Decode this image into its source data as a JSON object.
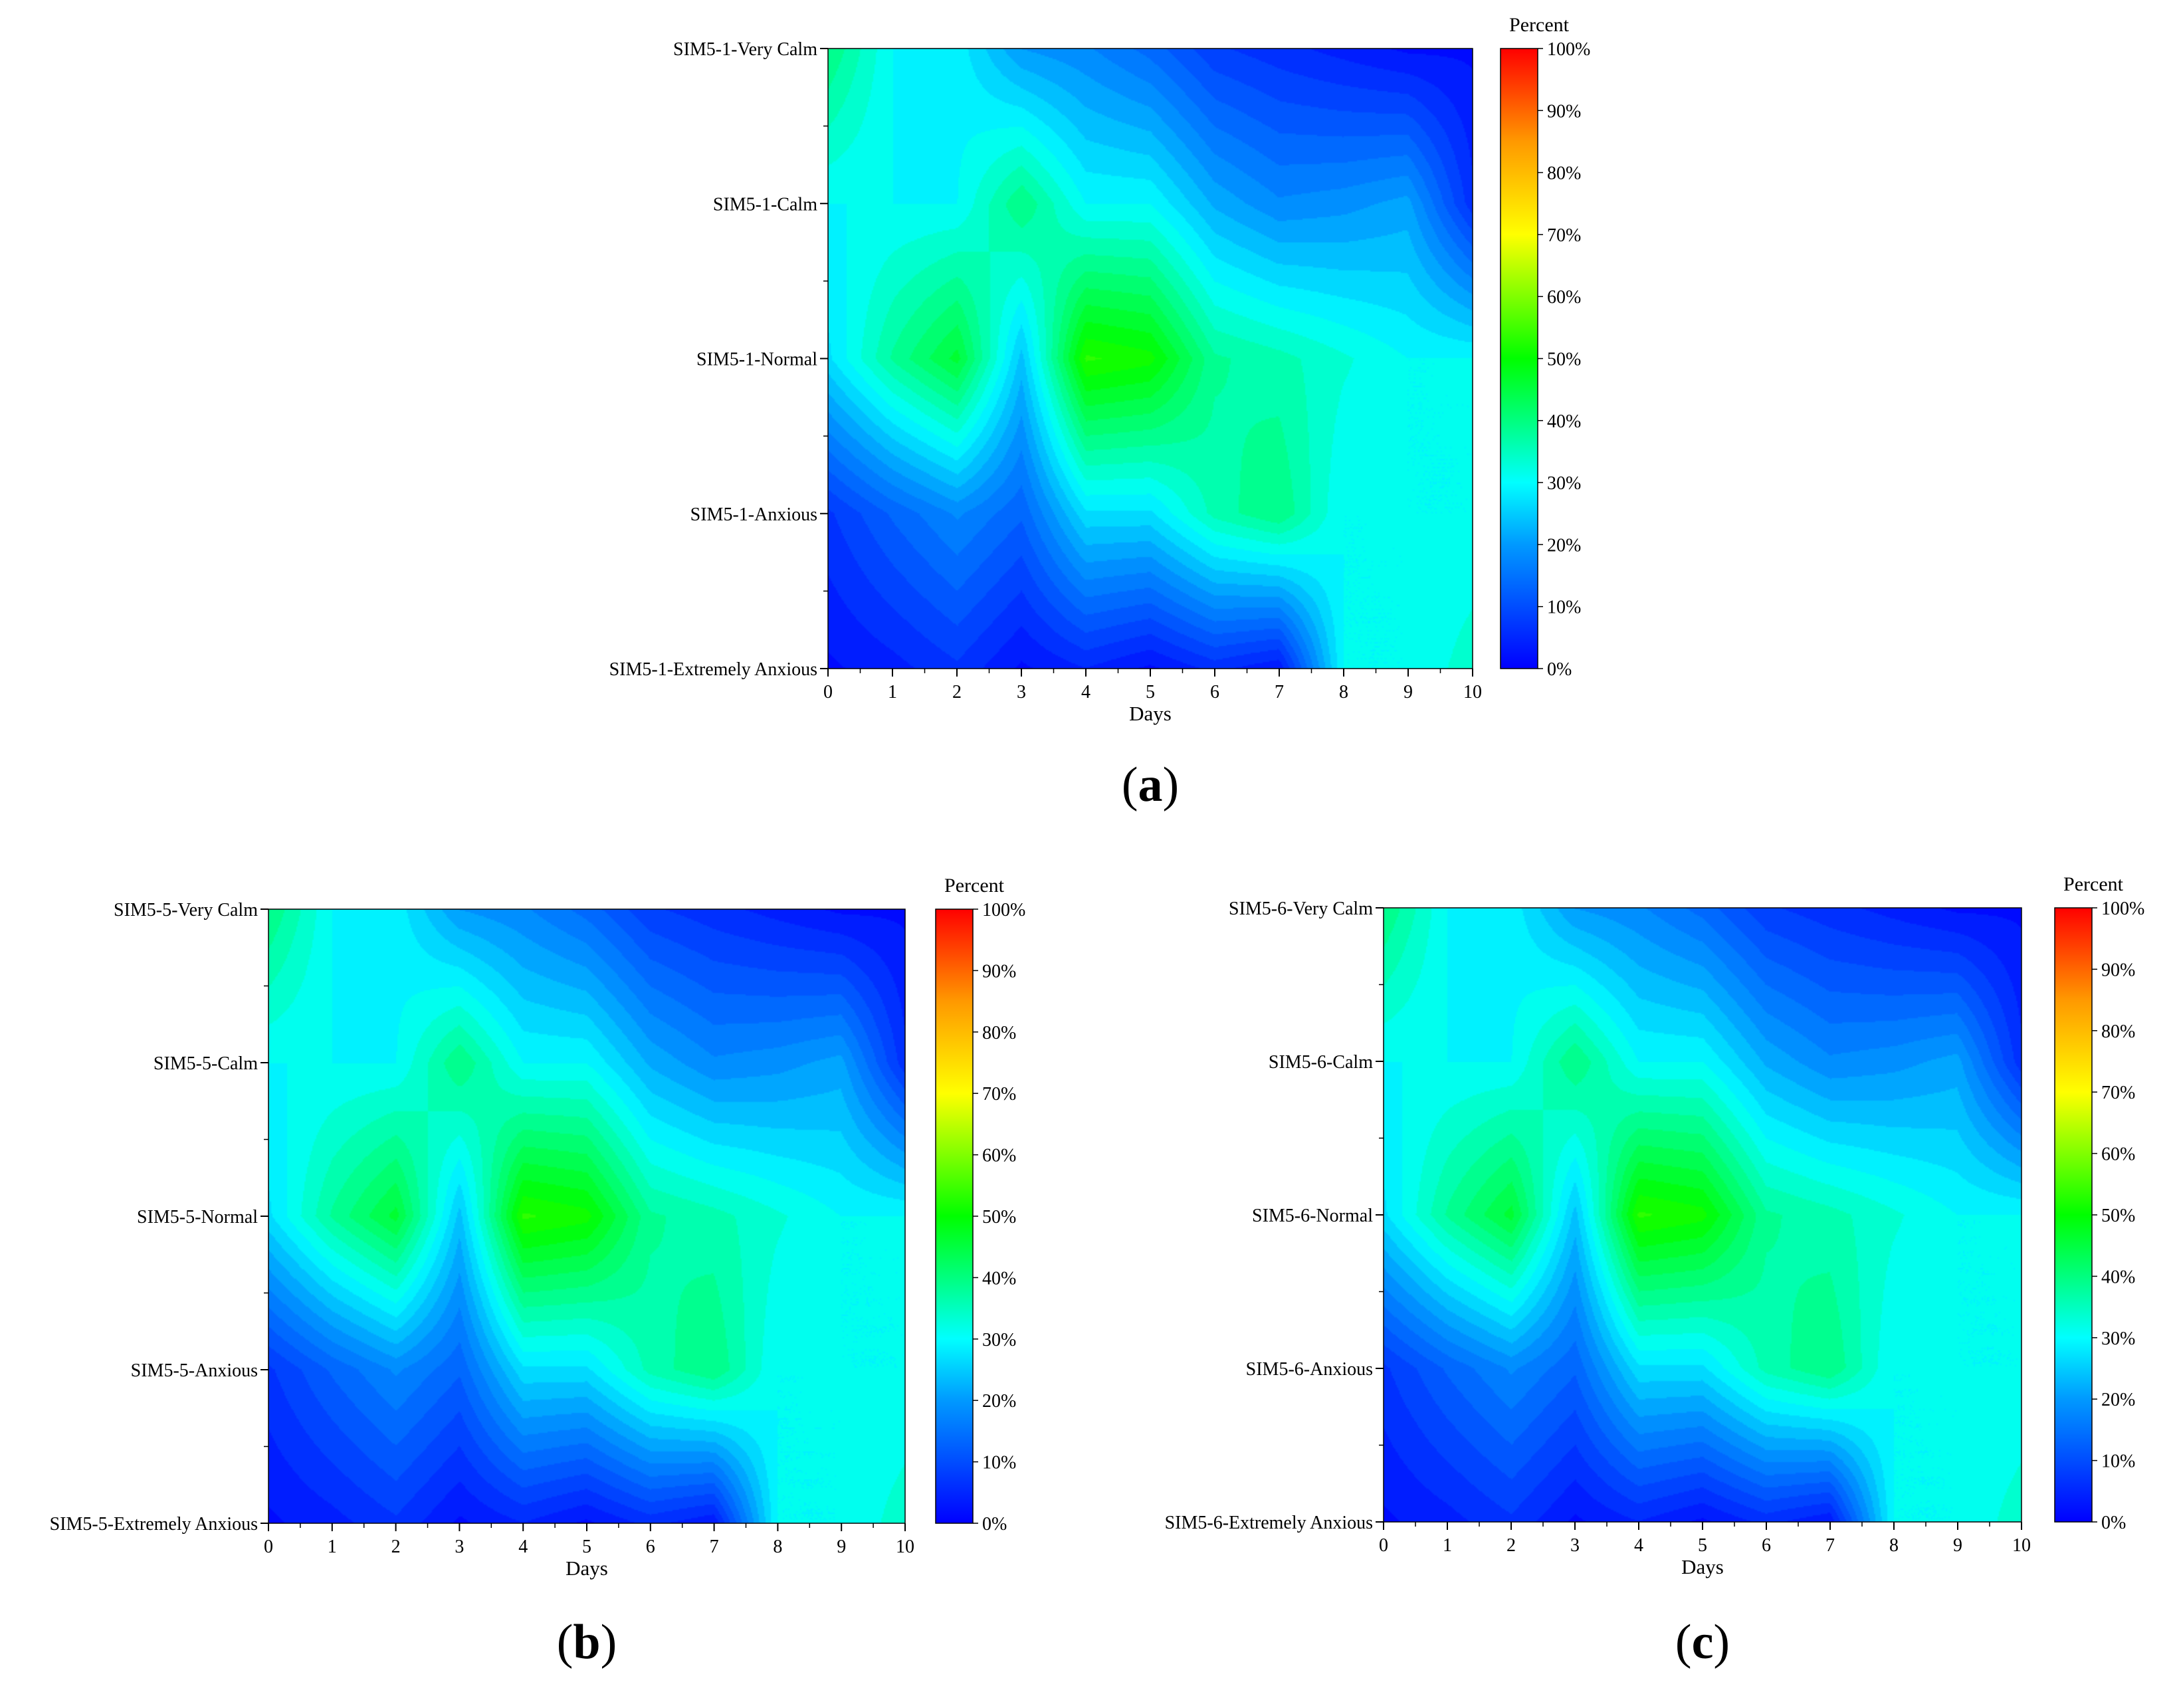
{
  "colors": {
    "colormap": [
      "#0000ff",
      "#0099ff",
      "#00ffff",
      "#00ff00",
      "#ffff00",
      "#ff9900",
      "#ff0000"
    ],
    "axis": "#000000"
  },
  "chart_data": [
    {
      "type": "heatmap",
      "panel_label": "(a)",
      "title": "",
      "xlabel": "Days",
      "ylabel": "",
      "x": [
        0,
        1,
        2,
        3,
        4,
        5,
        6,
        7,
        8,
        9,
        10
      ],
      "categories": [
        "SIM5-1-Extremely Anxious",
        "SIM5-1-Anxious",
        "SIM5-1-Normal",
        "SIM5-1-Calm",
        "SIM5-1-Very Calm"
      ],
      "colorbar": {
        "title": "Percent",
        "range": [
          0,
          100
        ],
        "ticks": [
          "0%",
          "10%",
          "20%",
          "30%",
          "40%",
          "50%",
          "60%",
          "70%",
          "80%",
          "90%",
          "100%"
        ]
      },
      "z": [
        [
          2,
          4,
          7,
          2,
          5,
          2,
          6,
          3,
          30,
          30,
          34
        ],
        [
          7,
          13,
          18,
          13,
          27,
          27,
          36,
          40,
          30,
          30,
          30
        ],
        [
          27,
          38,
          46,
          24,
          53,
          51,
          38,
          36,
          33,
          30,
          30
        ],
        [
          30,
          30,
          30,
          40,
          30,
          30,
          22,
          18,
          19,
          21,
          6
        ],
        [
          40,
          30,
          29,
          20,
          18,
          14,
          8,
          6,
          4,
          2,
          2
        ]
      ]
    },
    {
      "type": "heatmap",
      "panel_label": "(b)",
      "title": "",
      "xlabel": "Days",
      "ylabel": "",
      "x": [
        0,
        1,
        2,
        3,
        4,
        5,
        6,
        7,
        8,
        9,
        10
      ],
      "categories": [
        "SIM5-5-Extremely Anxious",
        "SIM5-5-Anxious",
        "SIM5-5-Normal",
        "SIM5-5-Calm",
        "SIM5-5-Very Calm"
      ],
      "colorbar": {
        "title": "Percent",
        "range": [
          0,
          100
        ],
        "ticks": [
          "0%",
          "10%",
          "20%",
          "30%",
          "40%",
          "50%",
          "60%",
          "70%",
          "80%",
          "90%",
          "100%"
        ]
      },
      "z": [
        [
          2,
          4,
          7,
          2,
          5,
          2,
          6,
          3,
          30,
          30,
          34
        ],
        [
          7,
          13,
          18,
          13,
          27,
          27,
          36,
          40,
          30,
          30,
          30
        ],
        [
          27,
          38,
          46,
          24,
          53,
          51,
          38,
          36,
          33,
          30,
          30
        ],
        [
          30,
          30,
          30,
          40,
          30,
          30,
          22,
          18,
          19,
          21,
          6
        ],
        [
          40,
          30,
          29,
          20,
          18,
          14,
          8,
          6,
          4,
          2,
          2
        ]
      ]
    },
    {
      "type": "heatmap",
      "panel_label": "(c)",
      "title": "",
      "xlabel": "Days",
      "ylabel": "",
      "x": [
        0,
        1,
        2,
        3,
        4,
        5,
        6,
        7,
        8,
        9,
        10
      ],
      "categories": [
        "SIM5-6-Extremely Anxious",
        "SIM5-6-Anxious",
        "SIM5-6-Normal",
        "SIM5-6-Calm",
        "SIM5-6-Very Calm"
      ],
      "colorbar": {
        "title": "Percent",
        "range": [
          0,
          100
        ],
        "ticks": [
          "0%",
          "10%",
          "20%",
          "30%",
          "40%",
          "50%",
          "60%",
          "70%",
          "80%",
          "90%",
          "100%"
        ]
      },
      "z": [
        [
          2,
          4,
          7,
          2,
          5,
          2,
          6,
          3,
          30,
          30,
          34
        ],
        [
          7,
          13,
          18,
          13,
          27,
          27,
          36,
          40,
          30,
          30,
          30
        ],
        [
          27,
          38,
          46,
          24,
          53,
          51,
          38,
          36,
          33,
          30,
          30
        ],
        [
          30,
          30,
          30,
          40,
          30,
          30,
          22,
          18,
          19,
          21,
          6
        ],
        [
          40,
          30,
          29,
          20,
          18,
          14,
          8,
          6,
          4,
          2,
          2
        ]
      ]
    }
  ]
}
